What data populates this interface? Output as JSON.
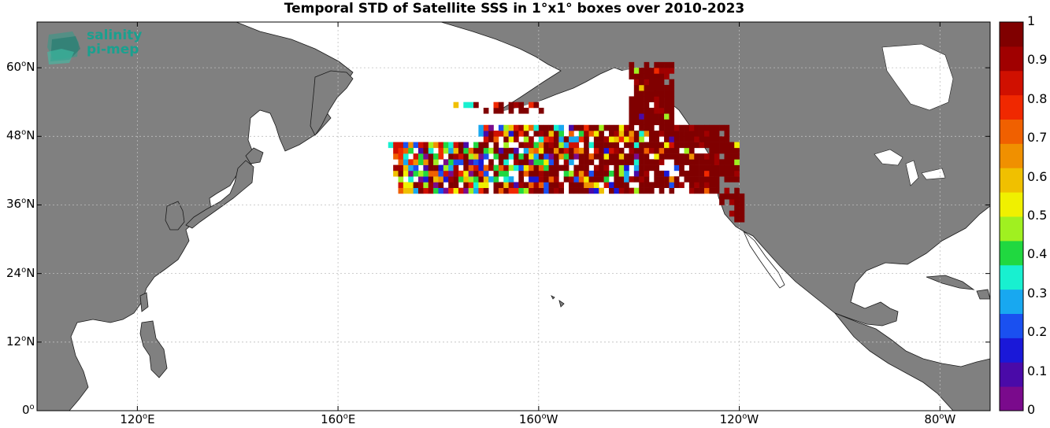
{
  "title": "Temporal STD of Satellite SSS in 1°x1° boxes over 2010-2023",
  "logo": {
    "line1": "salinity",
    "line2": "pi-mep"
  },
  "axes": {
    "lon_ticks": [
      {
        "value": 120,
        "label_deg": "120",
        "hem": "E"
      },
      {
        "value": 160,
        "label_deg": "160",
        "hem": "E"
      },
      {
        "value": 200,
        "label_deg": "160",
        "hem": "W"
      },
      {
        "value": 240,
        "label_deg": "120",
        "hem": "W"
      },
      {
        "value": 280,
        "label_deg": "80",
        "hem": "W"
      }
    ],
    "lat_ticks": [
      {
        "value": 0,
        "label_deg": "0",
        "hem": ""
      },
      {
        "value": 12,
        "label_deg": "12",
        "hem": "N"
      },
      {
        "value": 24,
        "label_deg": "24",
        "hem": "N"
      },
      {
        "value": 36,
        "label_deg": "36",
        "hem": "N"
      },
      {
        "value": 48,
        "label_deg": "48",
        "hem": "N"
      },
      {
        "value": 60,
        "label_deg": "60",
        "hem": "N"
      }
    ],
    "lon_range": [
      100,
      290
    ],
    "lat_range": [
      0,
      68
    ]
  },
  "colorbar": {
    "min": 0,
    "max": 1,
    "tick_labels": [
      "0",
      "0.1",
      "0.2",
      "0.3",
      "0.4",
      "0.5",
      "0.6",
      "0.7",
      "0.8",
      "0.9",
      "1"
    ],
    "colors": [
      "#7a0a8c",
      "#4a0aa8",
      "#1a18d8",
      "#1a50f0",
      "#18a8f0",
      "#18f0d0",
      "#20d840",
      "#a0f020",
      "#f0f000",
      "#f0c000",
      "#f09000",
      "#f06000",
      "#f02800",
      "#d01000",
      "#a00000",
      "#800000"
    ]
  },
  "colors": {
    "land": "#808080",
    "ocean": "#ffffff",
    "grid": "#bdbdbd"
  }
}
